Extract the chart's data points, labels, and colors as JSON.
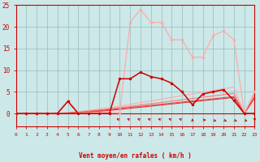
{
  "background_color": "#cce8e8",
  "grid_color": "#99bbbb",
  "xlabel": "Vent moyen/en rafales ( km/h )",
  "xlabel_color": "#cc0000",
  "ylim": [
    -3,
    25
  ],
  "xlim": [
    0,
    23
  ],
  "yticks": [
    0,
    5,
    10,
    15,
    20,
    25
  ],
  "xticks": [
    0,
    1,
    2,
    3,
    4,
    5,
    6,
    7,
    8,
    9,
    10,
    11,
    12,
    13,
    14,
    15,
    16,
    17,
    18,
    19,
    20,
    21,
    22,
    23
  ],
  "line_rafales_y": [
    0,
    0,
    0,
    0,
    0.2,
    3.0,
    0.2,
    0.2,
    0.2,
    0.2,
    0.2,
    21,
    24,
    21,
    21,
    17,
    17,
    13,
    13,
    18,
    19,
    17,
    0,
    5
  ],
  "line_rafales_color": "#ffaaaa",
  "line_moyen_y": [
    0,
    0,
    0,
    0,
    0,
    2.8,
    0,
    0,
    0,
    0,
    8,
    8,
    9.5,
    8.5,
    8,
    7,
    5,
    2,
    4.5,
    5,
    5.5,
    3,
    0,
    0
  ],
  "line_moyen_color": "#cc0000",
  "line_diag1_y": [
    0,
    0,
    0,
    0,
    0,
    0.2,
    0.4,
    0.7,
    1.0,
    1.3,
    1.7,
    2.1,
    2.5,
    2.9,
    3.3,
    3.7,
    4.1,
    4.5,
    4.9,
    5.3,
    5.7,
    6.1,
    0,
    5
  ],
  "line_diag1_color": "#ffaaaa",
  "line_diag2_y": [
    0,
    0,
    0,
    0,
    0,
    0.15,
    0.3,
    0.55,
    0.8,
    1.05,
    1.35,
    1.65,
    1.95,
    2.25,
    2.55,
    2.85,
    3.15,
    3.45,
    3.75,
    4.05,
    4.35,
    4.65,
    0,
    4.5
  ],
  "line_diag2_color": "#ff7777",
  "line_diag3_y": [
    0,
    0,
    0,
    0,
    0,
    0.1,
    0.25,
    0.45,
    0.65,
    0.9,
    1.15,
    1.4,
    1.65,
    1.9,
    2.15,
    2.4,
    2.65,
    2.9,
    3.15,
    3.4,
    3.65,
    3.9,
    0,
    3.8
  ],
  "line_diag3_color": "#ee5555",
  "line_diag4_y": [
    0,
    0,
    0,
    0,
    0,
    0.08,
    0.18,
    0.32,
    0.5,
    0.7,
    0.95,
    1.2,
    1.45,
    1.7,
    1.95,
    2.2,
    2.45,
    2.7,
    2.95,
    3.2,
    3.45,
    3.7,
    0,
    3.6
  ],
  "line_diag4_color": "#dd3333",
  "arrows_x": [
    10,
    11,
    12,
    13,
    14,
    15,
    16,
    17,
    18,
    19,
    20,
    21,
    22,
    23
  ],
  "arrows_dir": [
    [
      -1,
      1
    ],
    [
      -1,
      1
    ],
    [
      -1,
      1
    ],
    [
      -1,
      1
    ],
    [
      -1,
      1
    ],
    [
      -1,
      1
    ],
    [
      -1,
      1
    ],
    [
      0,
      1
    ],
    [
      1,
      0
    ],
    [
      1,
      -1
    ],
    [
      1,
      -1
    ],
    [
      1,
      -1
    ],
    [
      1,
      -1
    ],
    [
      0,
      -1
    ]
  ],
  "arrow_color": "#cc0000"
}
